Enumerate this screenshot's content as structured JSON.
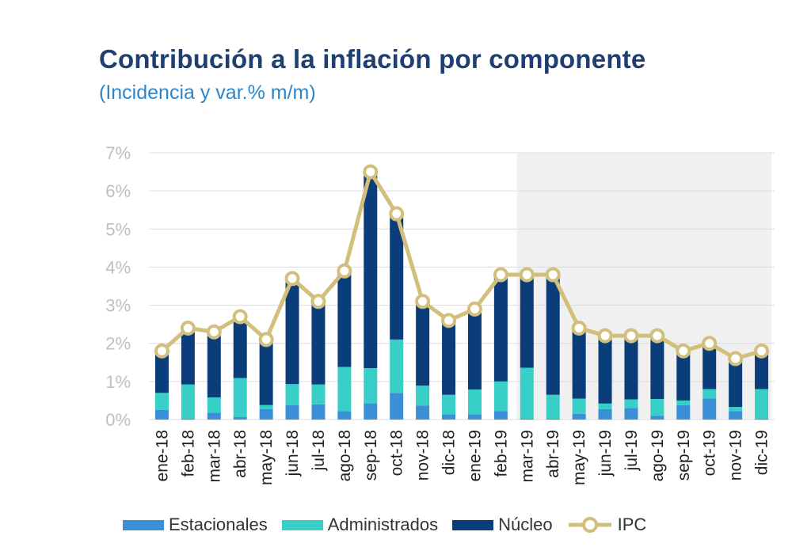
{
  "header": {
    "title": "Contribución a la inflación por componente",
    "subtitle": "(Incidencia y var.% m/m)"
  },
  "colors": {
    "estacionales": "#3a8fd6",
    "administrados": "#38cfc9",
    "nucleo": "#0b3d7a",
    "ipc": "#d2bf7c",
    "shade": "#f0f0f0",
    "grid": "#dcdcdc"
  },
  "chart_data": {
    "type": "bar",
    "stacked": true,
    "categories": [
      "ene-18",
      "feb-18",
      "mar-18",
      "abr-18",
      "may-18",
      "jun-18",
      "jul-18",
      "ago-18",
      "sep-18",
      "oct-18",
      "nov-18",
      "dic-18",
      "ene-19",
      "feb-19",
      "mar-19",
      "abr-19",
      "may-19",
      "jun-19",
      "jul-19",
      "ago-19",
      "sep-19",
      "oct-19",
      "nov-19",
      "dic-19"
    ],
    "y_tick_labels": [
      "0%",
      "1%",
      "2%",
      "3%",
      "4%",
      "5%",
      "6%",
      "7%"
    ],
    "ylim": [
      0,
      7
    ],
    "grid": true,
    "legend_position": "bottom",
    "shaded_range": [
      "mar-19",
      "dic-19"
    ],
    "series": [
      {
        "name": "Estacionales",
        "values": [
          0.25,
          0.02,
          0.18,
          0.07,
          0.27,
          0.38,
          0.4,
          0.22,
          0.43,
          0.7,
          0.37,
          0.14,
          0.14,
          0.22,
          0.02,
          0.02,
          0.15,
          0.27,
          0.3,
          0.1,
          0.38,
          0.55,
          0.22,
          0.02
        ]
      },
      {
        "name": "Administrados",
        "values": [
          0.45,
          0.9,
          0.4,
          1.02,
          0.11,
          0.55,
          0.52,
          1.16,
          0.92,
          1.4,
          0.52,
          0.51,
          0.65,
          0.78,
          1.34,
          0.63,
          0.4,
          0.15,
          0.23,
          0.44,
          0.12,
          0.25,
          0.11,
          0.78
        ]
      },
      {
        "name": "Núcleo",
        "values": [
          1.1,
          1.48,
          1.72,
          1.66,
          1.72,
          2.82,
          2.18,
          2.52,
          5.2,
          3.3,
          2.28,
          1.95,
          2.11,
          2.8,
          2.52,
          3.25,
          1.85,
          1.78,
          1.67,
          1.66,
          1.3,
          1.2,
          1.27,
          1.02
        ]
      },
      {
        "name": "IPC",
        "type": "line",
        "values": [
          1.8,
          2.4,
          2.3,
          2.7,
          2.1,
          3.7,
          3.1,
          3.9,
          6.5,
          5.4,
          3.1,
          2.6,
          2.9,
          3.8,
          3.8,
          3.8,
          2.4,
          2.2,
          2.2,
          2.2,
          1.8,
          2.0,
          1.6,
          1.8
        ]
      }
    ]
  }
}
